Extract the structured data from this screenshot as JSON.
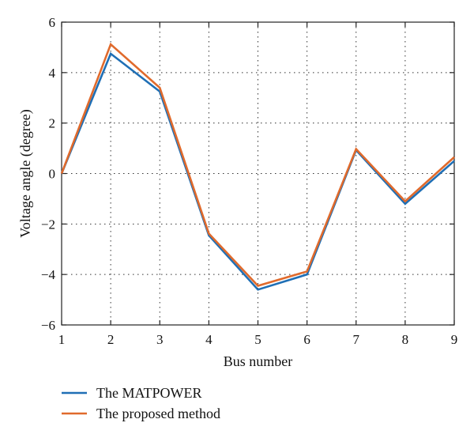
{
  "chart_data": {
    "type": "line",
    "xlabel": "Bus number",
    "ylabel": "Voltage angle (degree)",
    "xlim": [
      1,
      9
    ],
    "ylim": [
      -6,
      6
    ],
    "xticks": [
      "1",
      "2",
      "3",
      "4",
      "5",
      "6",
      "7",
      "8",
      "9"
    ],
    "yticks": [
      "6",
      "4",
      "2",
      "0",
      "−2",
      "−4",
      "−6"
    ],
    "ytick_values": [
      6,
      4,
      2,
      0,
      -2,
      -4,
      -6
    ],
    "grid": true,
    "legend_position": "bottom-left, below plot",
    "x": [
      1,
      2,
      3,
      4,
      5,
      6,
      7,
      8,
      9
    ],
    "series": [
      {
        "name": "The MATPOWER",
        "color": "#1f6fb5",
        "values": [
          0,
          4.75,
          3.25,
          -2.45,
          -4.6,
          -4.0,
          0.93,
          -1.2,
          0.5
        ]
      },
      {
        "name": "The proposed method",
        "color": "#e06a2c",
        "values": [
          0,
          5.12,
          3.4,
          -2.38,
          -4.45,
          -3.88,
          0.97,
          -1.1,
          0.65
        ]
      }
    ]
  }
}
